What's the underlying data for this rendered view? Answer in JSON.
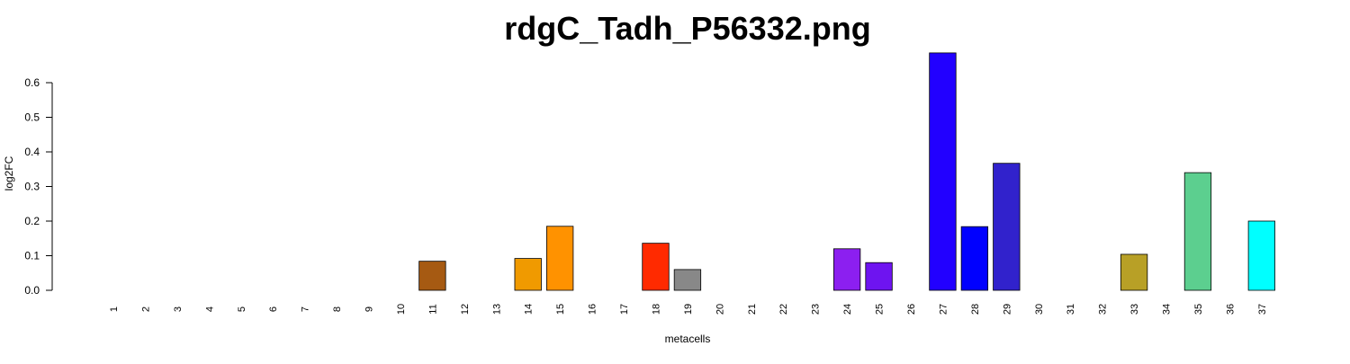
{
  "chart_data": {
    "type": "bar",
    "title": "rdgC_Tadh_P56332.png",
    "x_label": "metacells",
    "y_label": "log2FC",
    "categories": [
      "1",
      "2",
      "3",
      "4",
      "5",
      "6",
      "7",
      "8",
      "9",
      "10",
      "11",
      "12",
      "13",
      "14",
      "15",
      "16",
      "17",
      "18",
      "19",
      "20",
      "21",
      "22",
      "23",
      "24",
      "25",
      "26",
      "27",
      "28",
      "29",
      "30",
      "31",
      "32",
      "33",
      "34",
      "35",
      "36",
      "37"
    ],
    "values": [
      0,
      0,
      0,
      0,
      0,
      0,
      0,
      0,
      0,
      0,
      0.084,
      0,
      0,
      0.092,
      0.185,
      0,
      0,
      0.136,
      0.06,
      0,
      0,
      0,
      0,
      0.12,
      0.08,
      0,
      0.686,
      0.184,
      0.367,
      0,
      0,
      0,
      0.104,
      0,
      0.34,
      0,
      0.2
    ],
    "colors": [
      "#888888",
      "#888888",
      "#888888",
      "#888888",
      "#888888",
      "#888888",
      "#888888",
      "#888888",
      "#888888",
      "#888888",
      "#a65a12",
      "#888888",
      "#888888",
      "#f09a00",
      "#ff9200",
      "#888888",
      "#888888",
      "#ff2a00",
      "#888888",
      "#e80c3c",
      "#888888",
      "#888888",
      "#888888",
      "#8c1ff0",
      "#6e14f0",
      "#888888",
      "#2200ff",
      "#0000ff",
      "#3122cc",
      "#888888",
      "#888888",
      "#888888",
      "#b8a026",
      "#888888",
      "#5ccf8f",
      "#888888",
      "#00ffff"
    ],
    "ylim": [
      0,
      0.69
    ],
    "yticks": [
      {
        "value": 0,
        "label": "0.0"
      },
      0.1,
      0.2,
      0.3,
      0.4,
      0.5,
      0.6
    ]
  }
}
